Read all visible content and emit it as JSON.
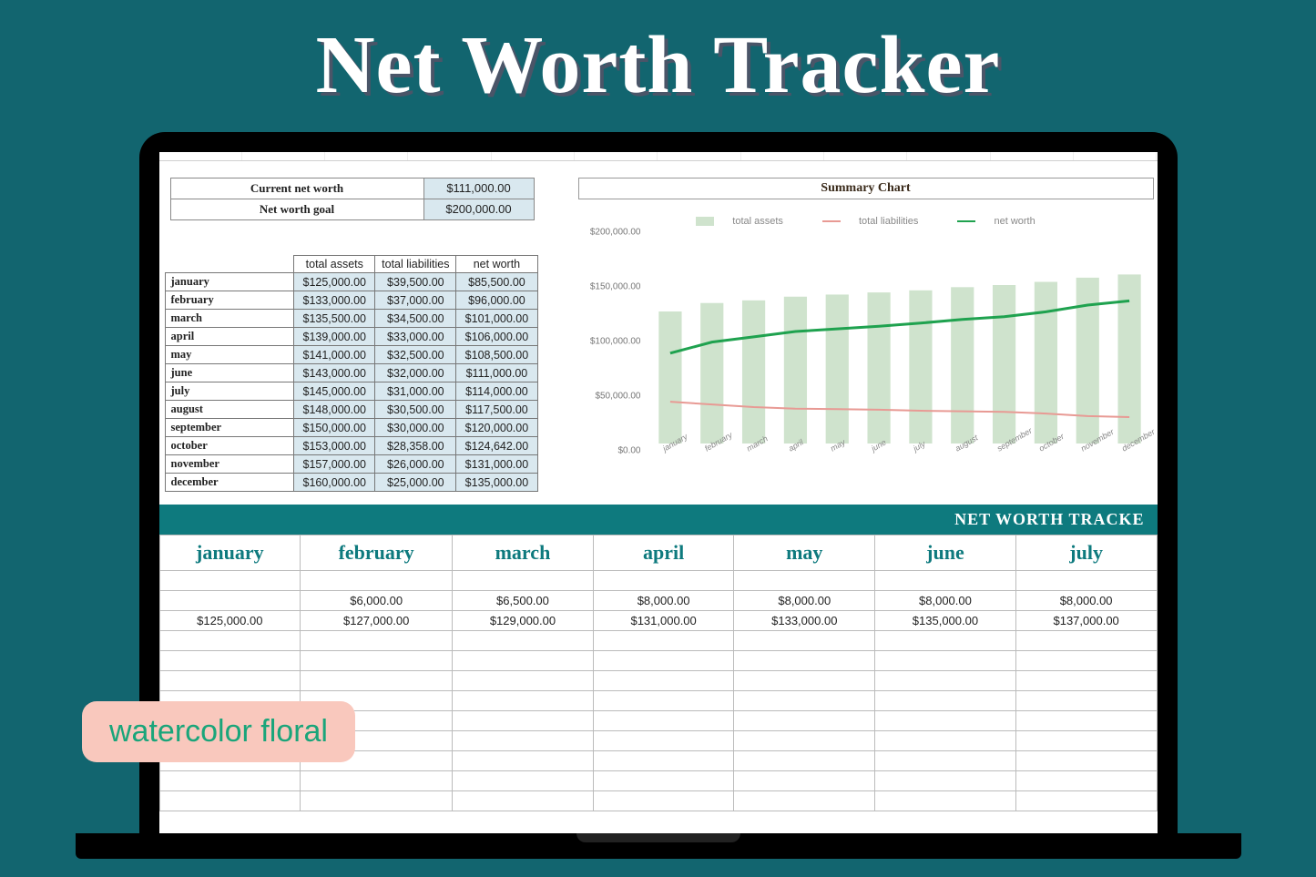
{
  "hero_title": "Net Worth Tracker",
  "badge_text": "watercolor floral",
  "colors": {
    "page_bg": "#12656f",
    "teal_banner": "#0e7a7e",
    "cell_blue": "#d9e8ef",
    "badge_bg": "#f9c8bd",
    "badge_text": "#1aa57a",
    "chart_bar": "#cfe3cd",
    "chart_liab": "#e89a94",
    "chart_net": "#1fa24f"
  },
  "summary": {
    "current_label": "Current net worth",
    "current_value": "$111,000.00",
    "goal_label": "Net worth goal",
    "goal_value": "$200,000.00"
  },
  "table_headers": {
    "assets": "total assets",
    "liab": "total liabilities",
    "net": "net worth"
  },
  "months": [
    {
      "name": "january",
      "assets": "$125,000.00",
      "liab": "$39,500.00",
      "net": "$85,500.00",
      "a": 125000,
      "l": 39500,
      "n": 85500
    },
    {
      "name": "february",
      "assets": "$133,000.00",
      "liab": "$37,000.00",
      "net": "$96,000.00",
      "a": 133000,
      "l": 37000,
      "n": 96000
    },
    {
      "name": "march",
      "assets": "$135,500.00",
      "liab": "$34,500.00",
      "net": "$101,000.00",
      "a": 135500,
      "l": 34500,
      "n": 101000
    },
    {
      "name": "april",
      "assets": "$139,000.00",
      "liab": "$33,000.00",
      "net": "$106,000.00",
      "a": 139000,
      "l": 33000,
      "n": 106000
    },
    {
      "name": "may",
      "assets": "$141,000.00",
      "liab": "$32,500.00",
      "net": "$108,500.00",
      "a": 141000,
      "l": 32500,
      "n": 108500
    },
    {
      "name": "june",
      "assets": "$143,000.00",
      "liab": "$32,000.00",
      "net": "$111,000.00",
      "a": 143000,
      "l": 32000,
      "n": 111000
    },
    {
      "name": "july",
      "assets": "$145,000.00",
      "liab": "$31,000.00",
      "net": "$114,000.00",
      "a": 145000,
      "l": 31000,
      "n": 114000
    },
    {
      "name": "august",
      "assets": "$148,000.00",
      "liab": "$30,500.00",
      "net": "$117,500.00",
      "a": 148000,
      "l": 30500,
      "n": 117500
    },
    {
      "name": "september",
      "assets": "$150,000.00",
      "liab": "$30,000.00",
      "net": "$120,000.00",
      "a": 150000,
      "l": 30000,
      "n": 120000
    },
    {
      "name": "october",
      "assets": "$153,000.00",
      "liab": "$28,358.00",
      "net": "$124,642.00",
      "a": 153000,
      "l": 28358,
      "n": 124642
    },
    {
      "name": "november",
      "assets": "$157,000.00",
      "liab": "$26,000.00",
      "net": "$131,000.00",
      "a": 157000,
      "l": 26000,
      "n": 131000
    },
    {
      "name": "december",
      "assets": "$160,000.00",
      "liab": "$25,000.00",
      "net": "$135,000.00",
      "a": 160000,
      "l": 25000,
      "n": 135000
    }
  ],
  "chart": {
    "title": "Summary Chart",
    "legend": {
      "assets": "total assets",
      "liab": "total liabilities",
      "net": "net worth"
    },
    "ymax": 200000,
    "yticks": [
      "$200,000.00",
      "$150,000.00",
      "$100,000.00",
      "$50,000.00",
      "$0.00"
    ]
  },
  "banner_text": "NET WORTH TRACKE",
  "lower": {
    "headers": [
      "january",
      "february",
      "march",
      "april",
      "may",
      "june",
      "july"
    ],
    "row1": [
      "",
      "$6,000.00",
      "$6,500.00",
      "$8,000.00",
      "$8,000.00",
      "$8,000.00",
      "$8,000.00"
    ],
    "row2": [
      "$125,000.00",
      "$127,000.00",
      "$129,000.00",
      "$131,000.00",
      "$133,000.00",
      "$135,000.00",
      "$137,000.00"
    ],
    "empty_rows": 9
  }
}
